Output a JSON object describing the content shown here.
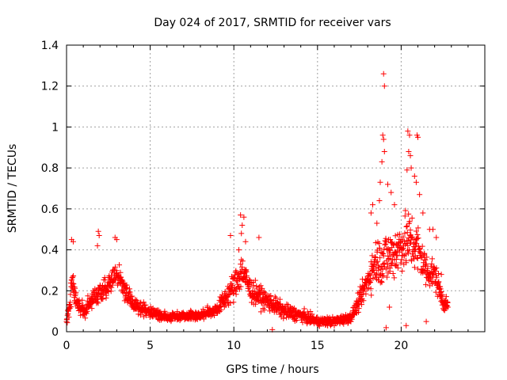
{
  "chart_data": {
    "type": "scatter",
    "title": "Day 024 of 2017, SRMTID for receiver vars",
    "xlabel": "GPS time / hours",
    "ylabel": "SRMTID / TECUs",
    "xlim": [
      0,
      25
    ],
    "ylim": [
      0,
      1.4
    ],
    "xticks": [
      0,
      5,
      10,
      15,
      20
    ],
    "yticks": [
      0,
      0.2,
      0.4,
      0.6,
      0.8,
      1,
      1.2,
      1.4
    ],
    "xtick_labels": [
      "0",
      "5",
      "10",
      "15",
      "20"
    ],
    "ytick_labels": [
      "0",
      "0.2",
      "0.4",
      "0.6",
      "0.8",
      "1",
      "1.2",
      "1.4"
    ],
    "grid": true,
    "marker": "+",
    "color": "#ff0000",
    "series": [
      {
        "name": "SRMTID",
        "profile": [
          [
            0.0,
            0.06,
            0.03
          ],
          [
            0.2,
            0.12,
            0.08
          ],
          [
            0.3,
            0.28,
            0.1
          ],
          [
            0.6,
            0.15,
            0.06
          ],
          [
            1.0,
            0.1,
            0.05
          ],
          [
            1.5,
            0.14,
            0.06
          ],
          [
            2.0,
            0.2,
            0.08
          ],
          [
            2.5,
            0.23,
            0.08
          ],
          [
            3.0,
            0.28,
            0.08
          ],
          [
            3.5,
            0.2,
            0.08
          ],
          [
            4.0,
            0.13,
            0.05
          ],
          [
            5.0,
            0.1,
            0.04
          ],
          [
            6.0,
            0.07,
            0.03
          ],
          [
            7.0,
            0.08,
            0.03
          ],
          [
            8.0,
            0.08,
            0.03
          ],
          [
            9.0,
            0.11,
            0.04
          ],
          [
            10.0,
            0.22,
            0.1
          ],
          [
            10.5,
            0.3,
            0.12
          ],
          [
            11.0,
            0.2,
            0.08
          ],
          [
            12.0,
            0.15,
            0.06
          ],
          [
            13.0,
            0.1,
            0.05
          ],
          [
            14.0,
            0.08,
            0.04
          ],
          [
            15.0,
            0.05,
            0.03
          ],
          [
            16.0,
            0.05,
            0.03
          ],
          [
            17.0,
            0.07,
            0.03
          ],
          [
            17.5,
            0.15,
            0.06
          ],
          [
            18.0,
            0.25,
            0.1
          ],
          [
            18.5,
            0.35,
            0.15
          ],
          [
            19.0,
            0.35,
            0.18
          ],
          [
            19.5,
            0.38,
            0.18
          ],
          [
            20.0,
            0.42,
            0.18
          ],
          [
            20.5,
            0.45,
            0.2
          ],
          [
            21.0,
            0.4,
            0.18
          ],
          [
            21.5,
            0.3,
            0.12
          ],
          [
            22.0,
            0.28,
            0.1
          ],
          [
            22.5,
            0.15,
            0.06
          ],
          [
            22.8,
            0.12,
            0.04
          ]
        ],
        "outliers": [
          [
            18.95,
            1.26
          ],
          [
            19.0,
            1.2
          ],
          [
            18.9,
            0.96
          ],
          [
            18.95,
            0.94
          ],
          [
            19.0,
            0.88
          ],
          [
            18.85,
            0.83
          ],
          [
            18.75,
            0.73
          ],
          [
            18.7,
            0.64
          ],
          [
            19.2,
            0.72
          ],
          [
            19.4,
            0.68
          ],
          [
            20.4,
            0.98
          ],
          [
            20.5,
            0.96
          ],
          [
            20.45,
            0.88
          ],
          [
            20.55,
            0.86
          ],
          [
            20.35,
            0.79
          ],
          [
            20.6,
            0.8
          ],
          [
            20.8,
            0.76
          ],
          [
            20.95,
            0.96
          ],
          [
            21.0,
            0.95
          ],
          [
            20.9,
            0.73
          ],
          [
            21.1,
            0.67
          ],
          [
            21.3,
            0.58
          ],
          [
            18.3,
            0.62
          ],
          [
            18.2,
            0.58
          ],
          [
            19.6,
            0.62
          ],
          [
            10.4,
            0.57
          ],
          [
            10.6,
            0.56
          ],
          [
            10.5,
            0.52
          ],
          [
            10.45,
            0.48
          ],
          [
            10.7,
            0.44
          ],
          [
            10.3,
            0.4
          ],
          [
            11.5,
            0.46
          ],
          [
            9.8,
            0.47
          ],
          [
            0.3,
            0.45
          ],
          [
            0.4,
            0.44
          ],
          [
            1.9,
            0.49
          ],
          [
            1.95,
            0.47
          ],
          [
            1.85,
            0.42
          ],
          [
            2.9,
            0.46
          ],
          [
            3.0,
            0.45
          ],
          [
            12.3,
            0.01
          ],
          [
            20.3,
            0.03
          ],
          [
            19.1,
            0.02
          ],
          [
            19.3,
            0.12
          ],
          [
            21.5,
            0.05
          ],
          [
            22.4,
            0.28
          ],
          [
            22.1,
            0.46
          ],
          [
            21.9,
            0.5
          ],
          [
            21.7,
            0.5
          ],
          [
            18.55,
            0.53
          ]
        ]
      }
    ]
  }
}
